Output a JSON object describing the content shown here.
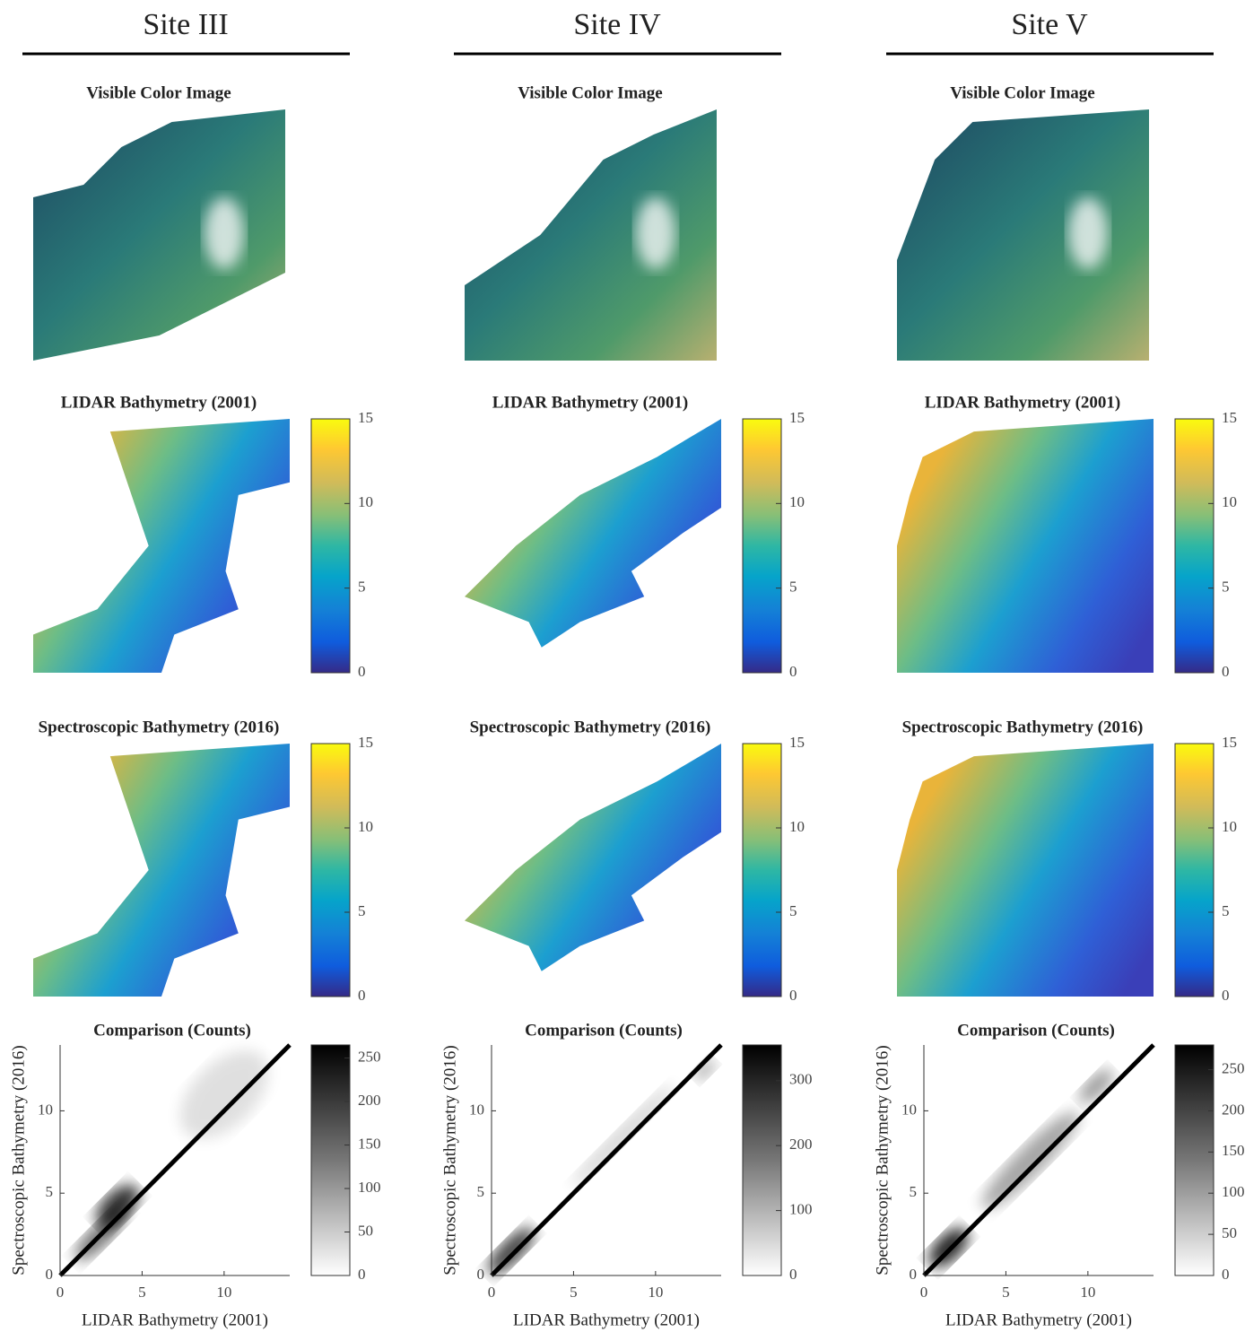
{
  "columns": [
    {
      "title": "Site III",
      "image": {
        "title": "Visible Color Image"
      },
      "lidar": {
        "title": "LIDAR Bathymetry (2001)",
        "clim": [
          0,
          15
        ],
        "cticks": [
          0,
          5,
          10,
          15
        ]
      },
      "spectro": {
        "title": "Spectroscopic Bathymetry (2016)",
        "clim": [
          0,
          15
        ],
        "cticks": [
          0,
          5,
          10,
          15
        ]
      },
      "comparison": {
        "title": "Comparison (Counts)",
        "xlabel": "LIDAR Bathymetry (2001)",
        "ylabel": "Spectroscopic Bathymetry (2016)",
        "xlim": [
          0,
          14
        ],
        "ylim": [
          0,
          14
        ],
        "xticks": [
          0,
          5,
          10
        ],
        "yticks": [
          0,
          5,
          10
        ],
        "clim": [
          0,
          265
        ],
        "cticks": [
          0,
          50,
          100,
          150,
          200,
          250
        ]
      }
    },
    {
      "title": "Site IV",
      "image": {
        "title": "Visible Color Image"
      },
      "lidar": {
        "title": "LIDAR Bathymetry (2001)",
        "clim": [
          0,
          15
        ],
        "cticks": [
          0,
          5,
          10,
          15
        ]
      },
      "spectro": {
        "title": "Spectroscopic Bathymetry (2016)",
        "clim": [
          0,
          15
        ],
        "cticks": [
          0,
          5,
          10,
          15
        ]
      },
      "comparison": {
        "title": "Comparison (Counts)",
        "xlabel": "LIDAR Bathymetry (2001)",
        "ylabel": "Spectroscopic Bathymetry (2016)",
        "xlim": [
          0,
          14
        ],
        "ylim": [
          0,
          14
        ],
        "xticks": [
          0,
          5,
          10
        ],
        "yticks": [
          0,
          5,
          10
        ],
        "clim": [
          0,
          355
        ],
        "cticks": [
          0,
          100,
          200,
          300
        ]
      }
    },
    {
      "title": "Site V",
      "image": {
        "title": "Visible Color Image"
      },
      "lidar": {
        "title": "LIDAR Bathymetry (2001)",
        "clim": [
          0,
          15
        ],
        "cticks": [
          0,
          5,
          10,
          15
        ]
      },
      "spectro": {
        "title": "Spectroscopic Bathymetry (2016)",
        "clim": [
          0,
          15
        ],
        "cticks": [
          0,
          5,
          10,
          15
        ]
      },
      "comparison": {
        "title": "Comparison (Counts)",
        "xlabel": "LIDAR Bathymetry (2001)",
        "ylabel": "Spectroscopic Bathymetry (2016)",
        "xlim": [
          0,
          14
        ],
        "ylim": [
          0,
          14
        ],
        "xticks": [
          0,
          5,
          10
        ],
        "yticks": [
          0,
          5,
          10
        ],
        "clim": [
          0,
          280
        ],
        "cticks": [
          0,
          50,
          100,
          150,
          200,
          250
        ]
      }
    }
  ]
}
